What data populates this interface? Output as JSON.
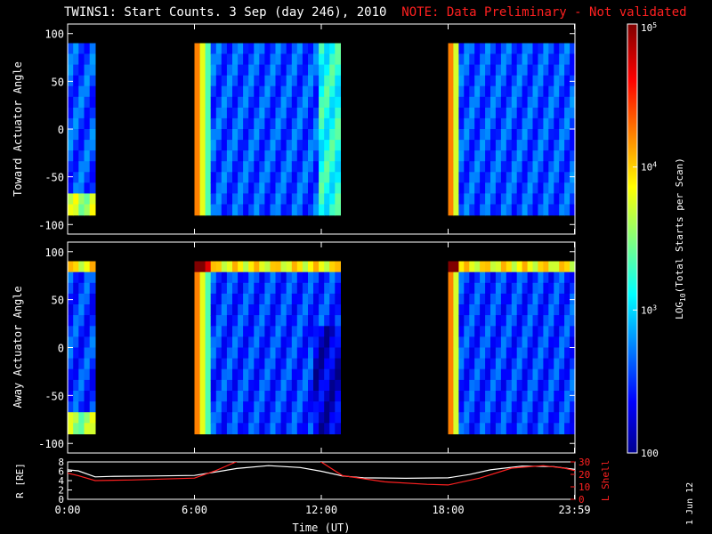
{
  "title": {
    "main": "TWINS1: Start Counts.  3 Sep (day 246), 2010",
    "note": "NOTE: Data Preliminary - Not validated"
  },
  "date_stamp": "1 Jun 12",
  "colors": {
    "background": "#000000",
    "axis": "#ffffff",
    "note": "#ff2020",
    "l_shell": "#ff2020",
    "r_line": "#ffffff"
  },
  "chart_data": [
    {
      "type": "heatmap",
      "name": "toward",
      "ylabel": "Toward Actuator Angle",
      "ylim": [
        -110,
        110
      ],
      "yticks": [
        100,
        50,
        0,
        -50,
        -100
      ],
      "xlim": [
        0,
        24
      ],
      "data_spans": [
        [
          0,
          1.3
        ],
        [
          6.0,
          12.9
        ],
        [
          18.0,
          24
        ]
      ],
      "base_level": 0.2
    },
    {
      "type": "heatmap",
      "name": "away",
      "ylabel": "Away Actuator Angle",
      "ylim": [
        -110,
        110
      ],
      "yticks": [
        100,
        50,
        0,
        -50,
        -100
      ],
      "xlim": [
        0,
        24
      ],
      "data_spans": [
        [
          0,
          1.3
        ],
        [
          6.0,
          12.9
        ],
        [
          18.0,
          24
        ]
      ],
      "base_level": 0.18
    },
    {
      "type": "line",
      "name": "ephemeris",
      "ylabel": "R [RE]",
      "ylabel_right": "L Shell",
      "xlabel": "Time (UT)",
      "xlim": [
        0,
        24
      ],
      "ylim": [
        0,
        8
      ],
      "yticks": [
        0,
        2,
        4,
        6,
        8
      ],
      "ylim_right": [
        0,
        30
      ],
      "yticks_right": [
        0,
        10,
        20,
        30
      ],
      "xtick_labels": [
        "0:00",
        "6:00",
        "12:00",
        "18:00",
        "23:59"
      ],
      "xtick_values": [
        0,
        6,
        12,
        18,
        23.98
      ],
      "series": [
        {
          "name": "R",
          "color": "#ffffff",
          "axis": "left",
          "x": [
            0,
            0.5,
            1.3,
            2,
            4,
            6,
            8,
            9.5,
            11,
            12,
            13,
            14,
            16,
            18,
            19,
            20,
            21.5,
            23,
            24
          ],
          "values": [
            6.3,
            6.1,
            4.8,
            4.9,
            5.0,
            5.1,
            6.6,
            7.2,
            6.8,
            6.0,
            5.0,
            4.6,
            4.5,
            4.6,
            5.3,
            6.3,
            7.1,
            7.0,
            6.4
          ]
        },
        {
          "name": "L Shell",
          "color": "#ff2020",
          "axis": "right",
          "x": [
            0,
            0.5,
            1.3,
            3,
            6,
            7,
            8.1,
            11.9,
            13,
            15,
            17,
            18,
            19.5,
            21,
            22.5,
            23.5,
            24
          ],
          "values": [
            21,
            19,
            15,
            15.5,
            17,
            23,
            31,
            31,
            19,
            14,
            12,
            11.5,
            17,
            25,
            27,
            25,
            23
          ]
        }
      ]
    },
    {
      "type": "colorbar",
      "name": "colorbar",
      "label": "LOG10(Total Starts per Scan)",
      "label_prefix": "LOG",
      "label_sub": "10",
      "label_suffix": "(Total Starts per Scan)",
      "scale": "log",
      "range": [
        100,
        100000
      ],
      "tick_labels": [
        "100",
        "10^3",
        "10^4",
        "10^5"
      ],
      "tick_values": [
        100,
        1000,
        10000,
        100000
      ]
    }
  ]
}
